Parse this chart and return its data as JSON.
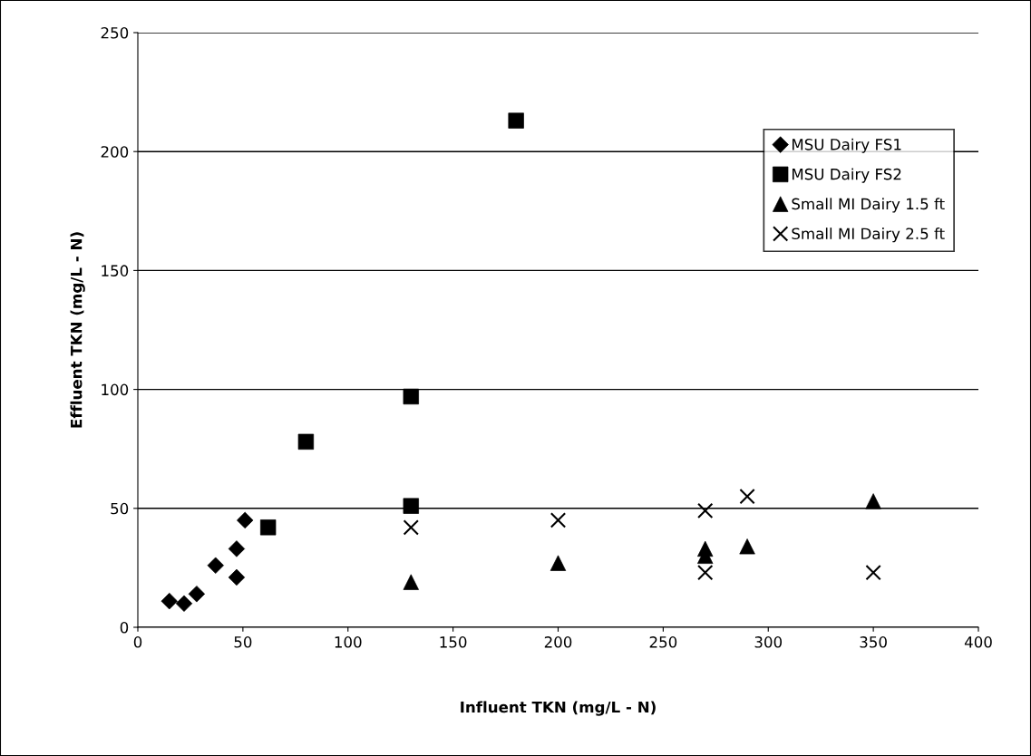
{
  "chart_data": {
    "type": "scatter",
    "xlabel": "Influent TKN (mg/L - N)",
    "ylabel": "Effluent TKN (mg/L - N)",
    "xlim": [
      0,
      400
    ],
    "xticks": [
      0,
      50,
      100,
      150,
      200,
      250,
      300,
      350,
      400
    ],
    "ylim": [
      0,
      250
    ],
    "yticks": [
      0,
      50,
      100,
      150,
      200,
      250
    ],
    "grid": "y",
    "legend": "top right",
    "series": [
      {
        "name": "MSU Dairy FS1",
        "color": "#000000",
        "marker": "diamond",
        "x": [
          15,
          22,
          28,
          37,
          47,
          47,
          51
        ],
        "values": [
          11,
          10,
          14,
          26,
          33,
          21,
          45
        ]
      },
      {
        "name": "MSU Dairy FS2",
        "color": "#000000",
        "marker": "square",
        "x": [
          62,
          80,
          130,
          130,
          180
        ],
        "values": [
          42,
          78,
          97,
          51,
          213
        ]
      },
      {
        "name": "Small MI Dairy 1.5 ft",
        "color": "#000000",
        "marker": "triangle",
        "x": [
          130,
          200,
          270,
          270,
          290,
          350
        ],
        "values": [
          19,
          27,
          33,
          30,
          34,
          53
        ]
      },
      {
        "name": "Small MI Dairy 2.5 ft",
        "color": "#000000",
        "marker": "cross",
        "x": [
          130,
          200,
          270,
          270,
          290,
          350
        ],
        "values": [
          42,
          45,
          49,
          23,
          55,
          23
        ]
      }
    ]
  }
}
